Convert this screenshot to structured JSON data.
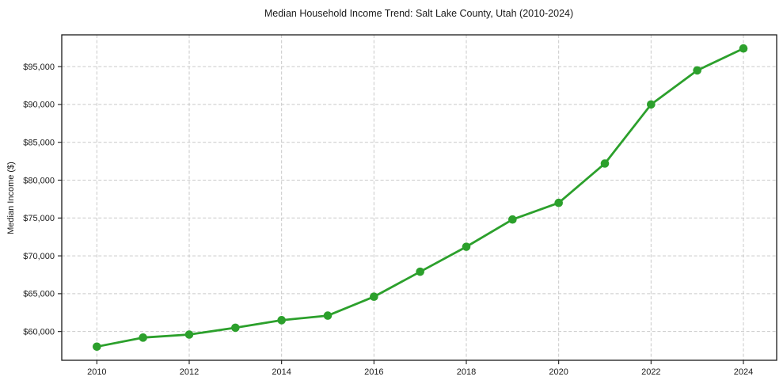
{
  "figure": {
    "background": "#ffffff"
  },
  "chart_data": {
    "type": "line",
    "title": "Median Household Income Trend: Salt Lake County, Utah (2010-2024)",
    "xlabel": "",
    "ylabel": "Median Income ($)",
    "x": [
      2010,
      2011,
      2012,
      2013,
      2014,
      2015,
      2016,
      2017,
      2018,
      2019,
      2020,
      2021,
      2022,
      2023,
      2024
    ],
    "y": [
      58000,
      59200,
      59600,
      60500,
      61500,
      62100,
      64600,
      67900,
      71200,
      74800,
      77000,
      82200,
      90000,
      94500,
      97400
    ],
    "series_name": "Median Household Income",
    "xticks": [
      2010,
      2012,
      2014,
      2016,
      2018,
      2020,
      2022,
      2024
    ],
    "xtick_labels": [
      "2010",
      "2012",
      "2014",
      "2016",
      "2018",
      "2020",
      "2022",
      "2024"
    ],
    "yticks": [
      60000,
      65000,
      70000,
      75000,
      80000,
      85000,
      90000,
      95000
    ],
    "ytick_labels": [
      "$60,000",
      "$65,000",
      "$70,000",
      "$75,000",
      "$80,000",
      "$85,000",
      "$90,000",
      "$95,000"
    ],
    "xlim": [
      2009.24,
      2024.72
    ],
    "ylim": [
      56200,
      99200
    ],
    "grid": true,
    "grid_style": "dashed",
    "legend": null,
    "line_color": "#2ca02c",
    "marker": "circle",
    "marker_color": "#2ca02c",
    "grid_color": "#c9c9c9",
    "frame_color": "#1a1a1a",
    "tick_color": "#1a1a1a",
    "text_color": "#1a1a1a",
    "background": "#ffffff"
  }
}
